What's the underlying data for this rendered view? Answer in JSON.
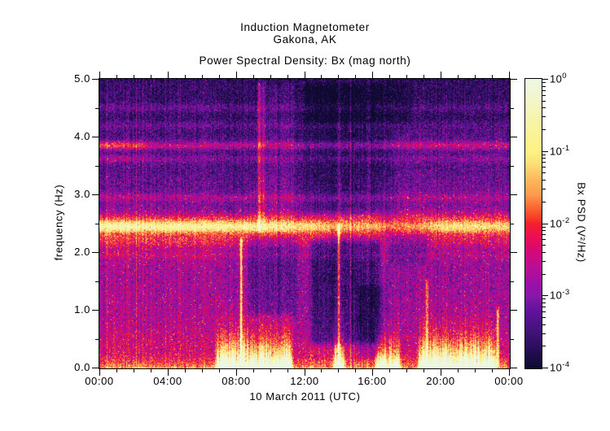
{
  "chart_data": {
    "type": "heatmap",
    "title": "Induction Magnetometer",
    "subtitle": "Gakona, AK",
    "plot_label": "Power Spectral Density: Bx (mag north)",
    "xlabel": "10 March 2011 (UTC)",
    "ylabel": "frequency (Hz)",
    "x_axis": {
      "tick_hours": [
        0,
        4,
        8,
        12,
        16,
        20,
        24
      ],
      "tick_labels": [
        "00:00",
        "04:00",
        "08:00",
        "12:00",
        "16:00",
        "20:00",
        "00:00"
      ],
      "minor_step_hours": 1,
      "range_hours": [
        0,
        24
      ]
    },
    "y_axis": {
      "tick_hz": [
        0,
        1,
        2,
        3,
        4,
        5
      ],
      "tick_labels": [
        "0.0",
        "1.0",
        "2.0",
        "3.0",
        "4.0",
        "5.0"
      ],
      "minor_step_hz": 0.5,
      "range_hz": [
        0,
        5
      ]
    },
    "colorbar": {
      "label": "Bx PSD (V²/Hz)",
      "scale": "log",
      "range_log10": [
        -4,
        0
      ],
      "ticks": [
        {
          "base": "10",
          "exp": "0",
          "log10": 0
        },
        {
          "base": "10",
          "exp": "-1",
          "log10": -1
        },
        {
          "base": "10",
          "exp": "-2",
          "log10": -2
        },
        {
          "base": "10",
          "exp": "-3",
          "log10": -3
        },
        {
          "base": "10",
          "exp": "-4",
          "log10": -4
        }
      ],
      "colormap_stops": [
        [
          0.0,
          "#0d0a2e"
        ],
        [
          0.042,
          "#1d0c47"
        ],
        [
          0.084,
          "#2f0f62"
        ],
        [
          0.14,
          "#471380"
        ],
        [
          0.196,
          "#5f129b"
        ],
        [
          0.25,
          "#8718a8"
        ],
        [
          0.293,
          "#9c0fa5"
        ],
        [
          0.349,
          "#b80f95"
        ],
        [
          0.405,
          "#d60877"
        ],
        [
          0.461,
          "#ef0f4e"
        ],
        [
          0.5,
          "#f5202d"
        ],
        [
          0.517,
          "#f83a26"
        ],
        [
          0.559,
          "#fb6b35"
        ],
        [
          0.601,
          "#fd9a4e"
        ],
        [
          0.656,
          "#fdba5f"
        ],
        [
          0.712,
          "#fce27a"
        ],
        [
          0.75,
          "#fcf283"
        ],
        [
          0.796,
          "#fbf391"
        ],
        [
          0.852,
          "#f8f4a8"
        ],
        [
          0.908,
          "#f4f6c0"
        ],
        [
          0.964,
          "#f0f7d8"
        ],
        [
          1.0,
          "#edf7e3"
        ]
      ]
    },
    "notable_features": [
      "Persistent narrowband emission near 2.45 Hz across all 24 h; brightest (~10^-1 V2/Hz) 00:00-12:00 and 19:30-24:00, dimmer 14:00-19:00",
      "Secondary narrowband line near 3.85 Hz, strongest 00:00-02:30; weaker lines near 3.6, 4.2 and 4.5 Hz and a faint band near 2.95 Hz",
      "Broadband low-frequency (<0.8 Hz) bursts reaching ~10^0 V2/Hz at ~06:40-11:20, ~13:40-14:25, ~16:05-17:45 and ~18:35-23:20",
      "Quiet dark region (~10^-3.5) between 0.4-2.3 Hz from ~12:10 to ~16:35 and above 2.6 Hz from ~12:00 to ~16:45",
      "Narrow full-height enhancements near 08:20, 09:20-09:35, 14:00, 19:10 and 23:20"
    ],
    "spectrogram_model": {
      "seed": 7,
      "base_profile": [
        [
          0.0,
          -2.05
        ],
        [
          0.25,
          -2.35
        ],
        [
          0.6,
          -2.65
        ],
        [
          1.0,
          -2.8
        ],
        [
          1.6,
          -2.85
        ],
        [
          2.1,
          -2.8
        ],
        [
          2.35,
          -2.85
        ],
        [
          2.7,
          -3.05
        ],
        [
          3.0,
          -3.2
        ],
        [
          3.4,
          -3.4
        ],
        [
          3.75,
          -3.5
        ],
        [
          4.05,
          -3.5
        ],
        [
          4.35,
          -3.62
        ],
        [
          5.0,
          -3.68
        ]
      ],
      "bands": [
        {
          "f": 2.45,
          "sigma": 0.085,
          "amp_by_time": [
            [
              0,
              2.3
            ],
            [
              6,
              2.2
            ],
            [
              11,
              2.05
            ],
            [
              12.5,
              1.8
            ],
            [
              14,
              1.55
            ],
            [
              15.5,
              1.5
            ],
            [
              17,
              1.25
            ],
            [
              18.5,
              1.3
            ],
            [
              19.8,
              1.85
            ],
            [
              21,
              1.95
            ],
            [
              22.5,
              1.8
            ],
            [
              24,
              1.75
            ]
          ]
        },
        {
          "f": 2.22,
          "sigma": 0.09,
          "amp_by_time": [
            [
              0,
              0.7
            ],
            [
              12,
              0.6
            ],
            [
              14,
              0.35
            ],
            [
              19,
              0.3
            ],
            [
              20,
              0.55
            ],
            [
              24,
              0.5
            ]
          ]
        },
        {
          "f": 2.62,
          "sigma": 0.07,
          "amp_by_time": [
            [
              0,
              0.5
            ],
            [
              24,
              0.45
            ]
          ]
        },
        {
          "f": 3.85,
          "sigma": 0.055,
          "amp_by_time": [
            [
              0,
              1.5
            ],
            [
              2.2,
              1.35
            ],
            [
              3,
              0.95
            ],
            [
              12,
              0.8
            ],
            [
              16,
              0.7
            ],
            [
              19,
              0.9
            ],
            [
              24,
              0.85
            ]
          ]
        },
        {
          "f": 3.62,
          "sigma": 0.05,
          "amp_by_time": [
            [
              0,
              0.7
            ],
            [
              2,
              0.6
            ],
            [
              4,
              0.4
            ],
            [
              24,
              0.35
            ]
          ]
        },
        {
          "f": 4.5,
          "sigma": 0.05,
          "amp_by_time": [
            [
              0,
              0.35
            ],
            [
              24,
              0.3
            ]
          ]
        },
        {
          "f": 4.2,
          "sigma": 0.045,
          "amp_by_time": [
            [
              0,
              0.3
            ],
            [
              24,
              0.25
            ]
          ]
        },
        {
          "f": 2.95,
          "sigma": 0.05,
          "amp_by_time": [
            [
              0,
              0.45
            ],
            [
              24,
              0.35
            ]
          ]
        },
        {
          "f": 1.95,
          "sigma": 0.05,
          "amp_by_time": [
            [
              0,
              0.25
            ],
            [
              24,
              0.2
            ]
          ]
        }
      ],
      "patches": [
        {
          "t0": 12.15,
          "t1": 16.6,
          "f0": 0.35,
          "f1": 2.3,
          "amp": -0.7
        },
        {
          "t0": 8.55,
          "t1": 11.7,
          "f0": 0.85,
          "f1": 2.35,
          "amp": -0.45
        },
        {
          "t0": 14.9,
          "t1": 16.9,
          "f0": 0.1,
          "f1": 1.5,
          "amp": -0.4
        },
        {
          "t0": 11.8,
          "t1": 16.8,
          "f0": 2.6,
          "f1": 5.0,
          "amp": -0.3
        },
        {
          "t0": 11.8,
          "t1": 18.4,
          "f0": 4.15,
          "f1": 5.0,
          "amp": -0.25
        },
        {
          "t0": 16.8,
          "t1": 19.3,
          "f0": 1.75,
          "f1": 2.35,
          "amp": -0.4
        },
        {
          "t0": 0.0,
          "t1": 7.0,
          "f0": 0.3,
          "f1": 2.3,
          "amp": 0.12
        },
        {
          "t0": 9.0,
          "t1": 11.6,
          "f0": 2.5,
          "f1": 5.0,
          "amp": 0.2
        },
        {
          "t0": 17.2,
          "t1": 24.0,
          "f0": 2.5,
          "f1": 4.2,
          "amp": 0.15
        },
        {
          "t0": 0.0,
          "t1": 7.0,
          "f0": 2.6,
          "f1": 5.0,
          "amp": 0.1
        }
      ],
      "bursts": [
        {
          "t0": 6.7,
          "t1": 11.4,
          "amp": 3.4,
          "fscale": 0.33
        },
        {
          "t0": 13.55,
          "t1": 14.45,
          "amp": 3.0,
          "fscale": 0.3
        },
        {
          "t0": 16.05,
          "t1": 17.75,
          "amp": 3.0,
          "fscale": 0.28
        },
        {
          "t0": 18.55,
          "t1": 23.35,
          "amp": 3.4,
          "fscale": 0.32
        },
        {
          "t0": 0.0,
          "t1": 24.0,
          "amp": 0.7,
          "fscale": 0.09
        }
      ],
      "stripes": [
        {
          "t": 8.3,
          "sigma": 0.05,
          "amp": 2.0,
          "f0": 0.0,
          "f1": 2.3
        },
        {
          "t": 9.35,
          "sigma": 0.07,
          "amp": 0.85,
          "f0": 2.3,
          "f1": 5.0
        },
        {
          "t": 9.6,
          "sigma": 0.05,
          "amp": 0.6,
          "f0": 2.3,
          "f1": 5.0
        },
        {
          "t": 14.0,
          "sigma": 0.05,
          "amp": 1.7,
          "f0": 0.0,
          "f1": 2.55
        },
        {
          "t": 14.02,
          "sigma": 0.05,
          "amp": 0.5,
          "f0": 2.55,
          "f1": 5.0
        },
        {
          "t": 15.8,
          "sigma": 0.05,
          "amp": 0.35,
          "f0": 2.5,
          "f1": 5.0
        },
        {
          "t": 19.15,
          "sigma": 0.06,
          "amp": 1.2,
          "f0": 0.0,
          "f1": 1.6
        },
        {
          "t": 23.3,
          "sigma": 0.05,
          "amp": 1.5,
          "f0": 0.0,
          "f1": 1.1
        }
      ],
      "noise": {
        "pixel": 0.5,
        "column": 0.28,
        "streak_prob": 0.06,
        "streak_amp": 0.8,
        "speckle_bright_prob": 0.018,
        "speckle_bright_amp": 0.95,
        "speckle_dark_prob": 0.015,
        "speckle_dark_amp": 0.9
      },
      "clamp_log10": [
        -4.0,
        0.2
      ]
    }
  }
}
